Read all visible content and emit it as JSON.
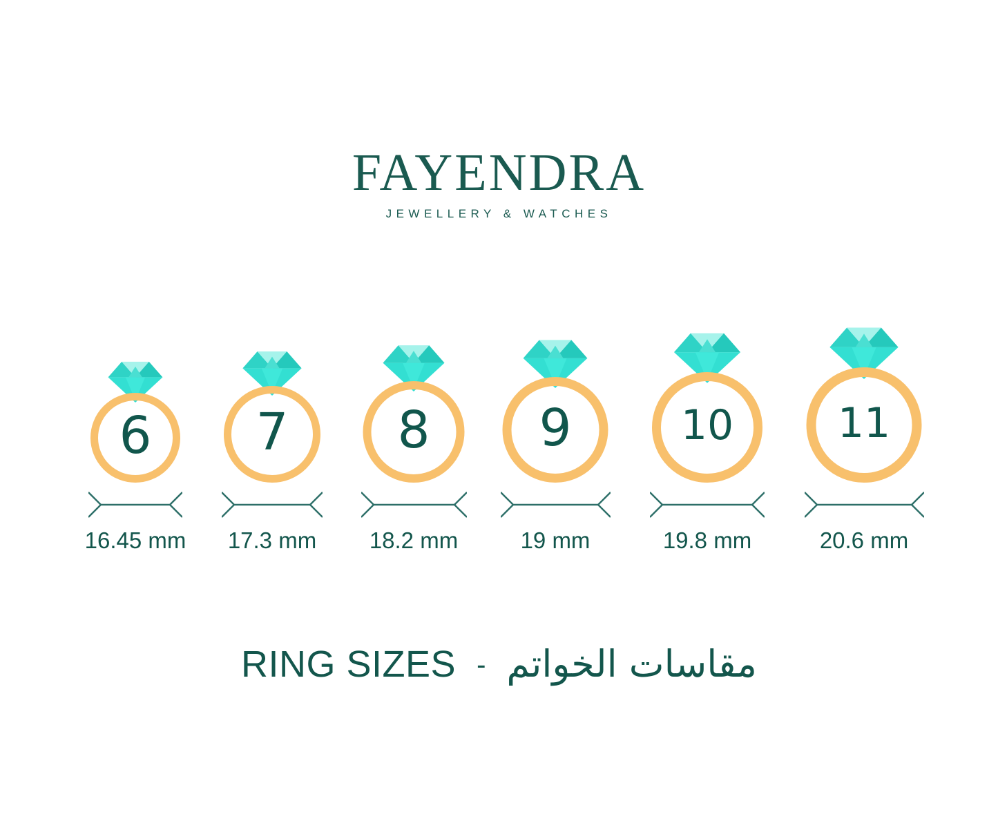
{
  "brand": {
    "name": "FAYENDRA",
    "tagline": "JEWELLERY & WATCHES"
  },
  "rings": [
    {
      "size": "6",
      "diameter": "16.45 mm"
    },
    {
      "size": "7",
      "diameter": "17.3 mm"
    },
    {
      "size": "8",
      "diameter": "18.2 mm"
    },
    {
      "size": "9",
      "diameter": "19 mm"
    },
    {
      "size": "10",
      "diameter": "19.8 mm"
    },
    {
      "size": "11",
      "diameter": "20.6 mm"
    }
  ],
  "footer": {
    "title_en": "RING SIZES",
    "separator": "-",
    "title_ar": "مقاسات الخواتم"
  },
  "colors": {
    "text_teal": "#13564C",
    "logo_teal": "#1A5A50",
    "band_orange": "#F8C06C",
    "measure_line_teal": "#2D6F68",
    "diamond_light": "#A6F3EB",
    "diamond_mid": "#2FD3C6",
    "diamond_dark": "#25C9BC",
    "diamond_pavilion": "#33DFD2"
  },
  "chart_data": {
    "type": "table",
    "title": "RING SIZES",
    "columns": [
      "ring_size",
      "inner_diameter_mm"
    ],
    "rows": [
      [
        6,
        16.45
      ],
      [
        7,
        17.3
      ],
      [
        8,
        18.2
      ],
      [
        9,
        19.0
      ],
      [
        10,
        19.8
      ],
      [
        11,
        20.6
      ]
    ]
  }
}
